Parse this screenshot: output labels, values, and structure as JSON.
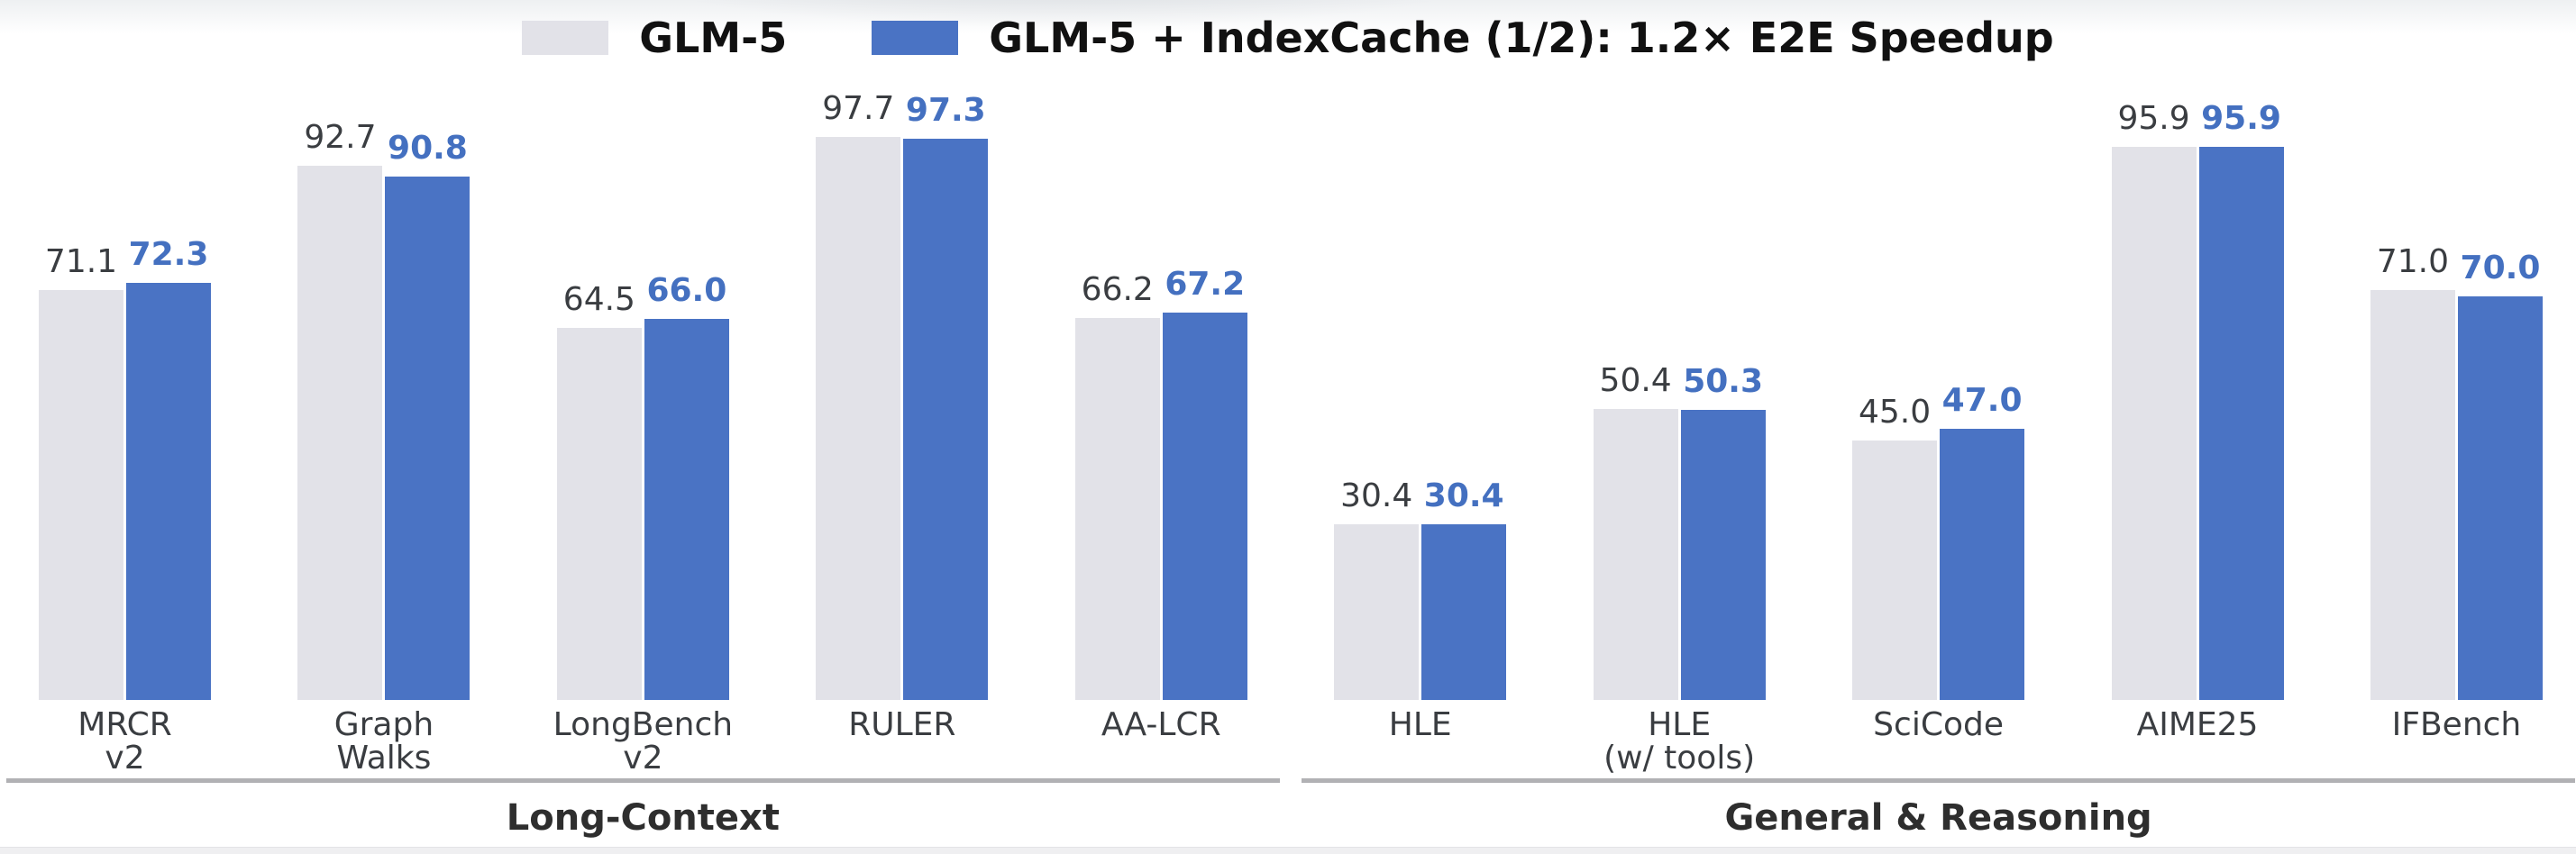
{
  "chart_data": {
    "type": "bar",
    "title": "",
    "categories": [
      "MRCR\nv2",
      "Graph\nWalks",
      "LongBench\nv2",
      "RULER",
      "AA-LCR",
      "HLE",
      "HLE\n(w/ tools)",
      "SciCode",
      "AIME25",
      "IFBench"
    ],
    "series": [
      {
        "name": "GLM-5",
        "color": "#e2e2e8",
        "label_color": "#3a3d41",
        "label_bold": false,
        "values": [
          71.1,
          92.7,
          64.5,
          97.7,
          66.2,
          30.4,
          50.4,
          45.0,
          95.9,
          71.0
        ]
      },
      {
        "name": "GLM-5 + IndexCache (1/2): 1.2× E2E Speedup",
        "color": "#4a73c4",
        "label_color": "#4470c0",
        "label_bold": true,
        "values": [
          72.3,
          90.8,
          66.0,
          97.3,
          67.2,
          30.4,
          50.3,
          47.0,
          95.9,
          70.0
        ]
      }
    ],
    "groups": [
      {
        "label": "Long-Context",
        "start": 0,
        "end": 4
      },
      {
        "label": "General & Reasoning",
        "start": 5,
        "end": 9
      }
    ],
    "ylim": [
      0,
      112
    ],
    "grid": false,
    "legend_position": "top",
    "value_labels": true,
    "value_decimals": 1
  },
  "style": {
    "background": "#ffffff",
    "category_label_color": "#3a3d41",
    "group_label_color": "#2e2e2e",
    "divider_color": "#b1b1b4"
  }
}
